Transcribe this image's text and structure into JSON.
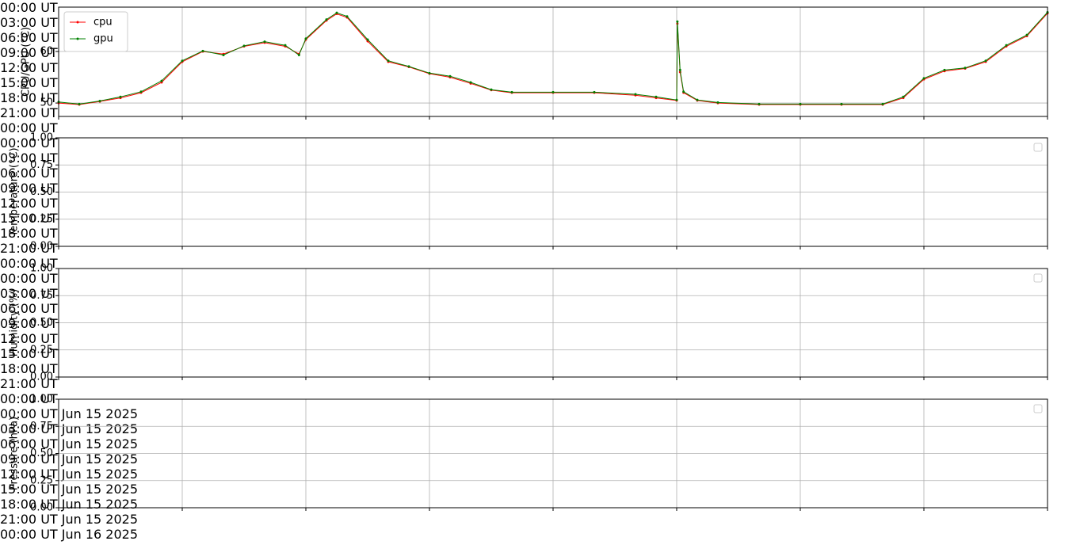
{
  "chart_data": [
    {
      "type": "line",
      "ylabel": "CPU/GPU (°C)",
      "grid": true,
      "legend": "upper left",
      "x": [
        "2025-06-15 00:00",
        "2025-06-15 00:30",
        "2025-06-15 01:00",
        "2025-06-15 01:30",
        "2025-06-15 02:00",
        "2025-06-15 02:30",
        "2025-06-15 03:00",
        "2025-06-15 03:30",
        "2025-06-15 04:00",
        "2025-06-15 04:30",
        "2025-06-15 05:00",
        "2025-06-15 05:30",
        "2025-06-15 05:50",
        "2025-06-15 06:00",
        "2025-06-15 06:30",
        "2025-06-15 06:45",
        "2025-06-15 07:00",
        "2025-06-15 07:30",
        "2025-06-15 08:00",
        "2025-06-15 08:30",
        "2025-06-15 09:00",
        "2025-06-15 09:30",
        "2025-06-15 10:00",
        "2025-06-15 10:30",
        "2025-06-15 11:00",
        "2025-06-15 12:00",
        "2025-06-15 13:00",
        "2025-06-15 14:00",
        "2025-06-15 14:30",
        "2025-06-15 15:00",
        "2025-06-15 15:01",
        "2025-06-15 15:05",
        "2025-06-15 15:10",
        "2025-06-15 15:30",
        "2025-06-15 16:00",
        "2025-06-15 17:00",
        "2025-06-15 18:00",
        "2025-06-15 19:00",
        "2025-06-15 20:00",
        "2025-06-15 20:30",
        "2025-06-15 21:00",
        "2025-06-15 21:30",
        "2025-06-15 22:00",
        "2025-06-15 22:30",
        "2025-06-15 23:00",
        "2025-06-15 23:30",
        "2025-06-16 00:00"
      ],
      "series": [
        {
          "name": "cpu",
          "color": "#ff0000",
          "values": [
            50,
            49.7,
            50.3,
            51,
            52,
            54,
            58,
            60,
            59.5,
            61,
            61.7,
            61,
            59.5,
            62.3,
            66,
            67.3,
            66.6,
            62,
            58,
            57,
            55.7,
            55,
            53.8,
            52.5,
            52,
            52,
            52,
            51.5,
            51,
            50.5,
            65.4,
            56,
            52,
            50.5,
            50,
            49.7,
            49.7,
            49.7,
            49.7,
            51,
            54.6,
            56.2,
            56.7,
            58,
            61,
            63,
            67.4
          ]
        },
        {
          "name": "gpu",
          "color": "#008000",
          "values": [
            50.2,
            49.8,
            50.4,
            51.2,
            52.2,
            54.3,
            58.2,
            60.1,
            59.3,
            61.1,
            61.9,
            61.2,
            59.3,
            62.5,
            66.2,
            67.5,
            66.8,
            62.3,
            58.2,
            57.1,
            55.8,
            55.2,
            54,
            52.6,
            52.1,
            52.1,
            52.1,
            51.7,
            51.2,
            50.6,
            65.8,
            56.4,
            52.2,
            50.6,
            50.1,
            49.8,
            49.8,
            49.8,
            49.8,
            51.2,
            54.8,
            56.4,
            56.8,
            58.2,
            61.2,
            63.2,
            67.6
          ]
        }
      ],
      "xlim": [
        "2025-06-15 00:00",
        "2025-06-16 00:00"
      ],
      "xticks": [
        {
          "value": "2025-06-15 00:00",
          "label": "00:00 UT"
        },
        {
          "value": "2025-06-15 03:00",
          "label": "03:00 UT"
        },
        {
          "value": "2025-06-15 06:00",
          "label": "06:00 UT"
        },
        {
          "value": "2025-06-15 09:00",
          "label": "09:00 UT"
        },
        {
          "value": "2025-06-15 12:00",
          "label": "12:00 UT"
        },
        {
          "value": "2025-06-15 15:00",
          "label": "15:00 UT"
        },
        {
          "value": "2025-06-15 18:00",
          "label": "18:00 UT"
        },
        {
          "value": "2025-06-15 21:00",
          "label": "21:00 UT"
        },
        {
          "value": "2025-06-16 00:00",
          "label": "00:00 UT"
        }
      ],
      "ylim": [
        47.4,
        68.6
      ],
      "yticks": [
        50,
        60
      ]
    },
    {
      "type": "line",
      "ylabel": "Temperature (°C)",
      "grid": true,
      "legend": "upper right",
      "xlim": [
        "2025-06-15 00:00",
        "2025-06-16 00:00"
      ],
      "xticks": [
        {
          "value": "2025-06-15 00:00",
          "label": "00:00 UT"
        },
        {
          "value": "2025-06-15 03:00",
          "label": "03:00 UT"
        },
        {
          "value": "2025-06-15 06:00",
          "label": "06:00 UT"
        },
        {
          "value": "2025-06-15 09:00",
          "label": "09:00 UT"
        },
        {
          "value": "2025-06-15 12:00",
          "label": "12:00 UT"
        },
        {
          "value": "2025-06-15 15:00",
          "label": "15:00 UT"
        },
        {
          "value": "2025-06-15 18:00",
          "label": "18:00 UT"
        },
        {
          "value": "2025-06-15 21:00",
          "label": "21:00 UT"
        },
        {
          "value": "2025-06-16 00:00",
          "label": "00:00 UT"
        }
      ],
      "ylim": [
        0,
        1
      ],
      "yticks": [
        {
          "value": 0,
          "label": "0.00"
        },
        {
          "value": 0.25,
          "label": "0.25"
        },
        {
          "value": 0.5,
          "label": "0.50"
        },
        {
          "value": 0.75,
          "label": "0.75"
        },
        {
          "value": 1,
          "label": "1.00"
        }
      ]
    },
    {
      "type": "line",
      "ylabel": "Humidity (%)",
      "grid": true,
      "legend": "upper right",
      "xlim": [
        "2025-06-15 00:00",
        "2025-06-16 00:00"
      ],
      "xticks": [
        {
          "value": "2025-06-15 00:00",
          "label": "00:00 UT"
        },
        {
          "value": "2025-06-15 03:00",
          "label": "03:00 UT"
        },
        {
          "value": "2025-06-15 06:00",
          "label": "06:00 UT"
        },
        {
          "value": "2025-06-15 09:00",
          "label": "09:00 UT"
        },
        {
          "value": "2025-06-15 12:00",
          "label": "12:00 UT"
        },
        {
          "value": "2025-06-15 15:00",
          "label": "15:00 UT"
        },
        {
          "value": "2025-06-15 18:00",
          "label": "18:00 UT"
        },
        {
          "value": "2025-06-15 21:00",
          "label": "21:00 UT"
        },
        {
          "value": "2025-06-16 00:00",
          "label": "00:00 UT"
        }
      ],
      "ylim": [
        0,
        1
      ],
      "yticks": [
        {
          "value": 0,
          "label": "0.00"
        },
        {
          "value": 0.25,
          "label": "0.25"
        },
        {
          "value": 0.5,
          "label": "0.50"
        },
        {
          "value": 0.75,
          "label": "0.75"
        },
        {
          "value": 1,
          "label": "1.00"
        }
      ]
    },
    {
      "type": "line",
      "ylabel": "Pressure (hPa)",
      "grid": true,
      "legend": "upper right",
      "xlim": [
        "2025-06-15 00:00",
        "2025-06-16 00:00"
      ],
      "xticks": [
        {
          "value": "2025-06-15 00:00",
          "label": "00:00 UT\nJun 15\n2025"
        },
        {
          "value": "2025-06-15 03:00",
          "label": "03:00 UT\nJun 15\n2025"
        },
        {
          "value": "2025-06-15 06:00",
          "label": "06:00 UT\nJun 15\n2025"
        },
        {
          "value": "2025-06-15 09:00",
          "label": "09:00 UT\nJun 15\n2025"
        },
        {
          "value": "2025-06-15 12:00",
          "label": "12:00 UT\nJun 15\n2025"
        },
        {
          "value": "2025-06-15 15:00",
          "label": "15:00 UT\nJun 15\n2025"
        },
        {
          "value": "2025-06-15 18:00",
          "label": "18:00 UT\nJun 15\n2025"
        },
        {
          "value": "2025-06-15 21:00",
          "label": "21:00 UT\nJun 15\n2025"
        },
        {
          "value": "2025-06-16 00:00",
          "label": "00:00 UT\nJun 16\n2025"
        }
      ],
      "ylim": [
        0,
        1
      ],
      "yticks": [
        {
          "value": 0,
          "label": "0.00"
        },
        {
          "value": 0.25,
          "label": "0.25"
        },
        {
          "value": 0.5,
          "label": "0.50"
        },
        {
          "value": 0.75,
          "label": "0.75"
        },
        {
          "value": 1,
          "label": "1.00"
        }
      ]
    }
  ]
}
